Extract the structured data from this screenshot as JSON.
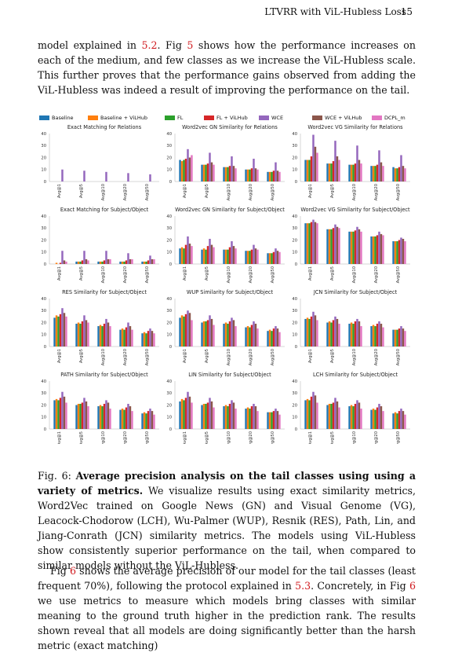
{
  "header": {
    "running_head": "LTVRR with ViL-Hubless Loss",
    "page_number": "15"
  },
  "intro_para": {
    "t1": "model explained in ",
    "r1": "5.2",
    "t2": ". Fig ",
    "r2": "5",
    "t3": " shows how the performance increases on each of the medium, and few classes as we increase the ViL-Hubless scale. This further proves that the performance gains observed from adding the ViL-Hubless was indeed a result of improving the performance on the tail."
  },
  "colors": {
    "Baseline": "#1f77b4",
    "Baseline + ViLHub": "#ff7f0e",
    "FL": "#2ca02c",
    "FL + ViLHub": "#d62728",
    "WCE": "#9467bd",
    "WCE + ViLHub": "#8c564b",
    "DCPL_m": "#e377c2"
  },
  "chart_data": [
    {
      "type": "bar",
      "title": "Exact Matching for Relations",
      "categories": [
        "Avg@1",
        "Avg@5",
        "Avg@10",
        "Avg@20",
        "Avg@50"
      ],
      "ylim": [
        0,
        40
      ],
      "yticks": [
        0,
        10,
        20,
        30,
        40
      ],
      "series": [
        {
          "name": "Baseline",
          "values": [
            0,
            0,
            0,
            0,
            0
          ]
        },
        {
          "name": "Baseline + ViLHub",
          "values": [
            0,
            0,
            0,
            0,
            0
          ]
        },
        {
          "name": "FL",
          "values": [
            0,
            0,
            0,
            0,
            0
          ]
        },
        {
          "name": "FL + ViLHub",
          "values": [
            0,
            0,
            0,
            0,
            0
          ]
        },
        {
          "name": "WCE",
          "values": [
            10,
            9,
            8,
            7,
            6
          ]
        },
        {
          "name": "WCE + ViLHub",
          "values": [
            0,
            0,
            0,
            0,
            0
          ]
        },
        {
          "name": "DCPL_m",
          "values": [
            0,
            0,
            0,
            0,
            0
          ]
        }
      ]
    },
    {
      "type": "bar",
      "title": "Word2vec GN Similarity for Relations",
      "categories": [
        "Avg@1",
        "Avg@5",
        "Avg@10",
        "Avg@20",
        "Avg@50"
      ],
      "ylim": [
        0,
        40
      ],
      "yticks": [
        0,
        10,
        20,
        30,
        40
      ],
      "series": [
        {
          "name": "Baseline",
          "values": [
            18,
            14,
            12,
            10,
            8
          ]
        },
        {
          "name": "Baseline + ViLHub",
          "values": [
            17,
            14,
            12,
            10,
            8
          ]
        },
        {
          "name": "FL",
          "values": [
            18,
            14,
            12,
            10,
            8
          ]
        },
        {
          "name": "FL + ViLHub",
          "values": [
            19,
            15,
            13,
            11,
            9
          ]
        },
        {
          "name": "WCE",
          "values": [
            27,
            24,
            21,
            19,
            16
          ]
        },
        {
          "name": "WCE + ViLHub",
          "values": [
            20,
            16,
            13,
            11,
            9
          ]
        },
        {
          "name": "DCPL_m",
          "values": [
            22,
            14,
            11,
            10,
            8
          ]
        }
      ]
    },
    {
      "type": "bar",
      "title": "Word2vec VG Similarity for Relations",
      "categories": [
        "Avg@1",
        "Avg@5",
        "Avg@10",
        "Avg@20",
        "Avg@50"
      ],
      "ylim": [
        0,
        40
      ],
      "yticks": [
        0,
        10,
        20,
        30,
        40
      ],
      "series": [
        {
          "name": "Baseline",
          "values": [
            18,
            15,
            14,
            13,
            12
          ]
        },
        {
          "name": "Baseline + ViLHub",
          "values": [
            18,
            15,
            14,
            13,
            11
          ]
        },
        {
          "name": "FL",
          "values": [
            18,
            15,
            14,
            13,
            11
          ]
        },
        {
          "name": "FL + ViLHub",
          "values": [
            21,
            17,
            15,
            14,
            12
          ]
        },
        {
          "name": "WCE",
          "values": [
            39,
            34,
            30,
            26,
            22
          ]
        },
        {
          "name": "WCE + ViLHub",
          "values": [
            29,
            21,
            18,
            16,
            13
          ]
        },
        {
          "name": "DCPL_m",
          "values": [
            24,
            18,
            15,
            13,
            11
          ]
        }
      ]
    },
    {
      "type": "bar",
      "title": "Exact Matching for Subject/Object",
      "categories": [
        "Avg@1",
        "Avg@5",
        "Avg@10",
        "Avg@20",
        "Avg@50"
      ],
      "ylim": [
        0,
        40
      ],
      "yticks": [
        0,
        10,
        20,
        30,
        40
      ],
      "series": [
        {
          "name": "Baseline",
          "values": [
            0,
            2,
            2,
            2,
            2
          ]
        },
        {
          "name": "Baseline + ViLHub",
          "values": [
            1,
            2,
            2,
            2,
            2
          ]
        },
        {
          "name": "FL",
          "values": [
            0,
            2,
            2,
            2,
            2
          ]
        },
        {
          "name": "FL + ViLHub",
          "values": [
            1,
            3,
            3,
            3,
            3
          ]
        },
        {
          "name": "WCE",
          "values": [
            11,
            11,
            11,
            9,
            7
          ]
        },
        {
          "name": "WCE + ViLHub",
          "values": [
            3,
            4,
            4,
            4,
            4
          ]
        },
        {
          "name": "DCPL_m",
          "values": [
            2,
            3,
            4,
            4,
            4
          ]
        }
      ]
    },
    {
      "type": "bar",
      "title": "Word2vec GN Similarity for Subject/Object",
      "categories": [
        "Avg@1",
        "Avg@5",
        "Avg@10",
        "Avg@20",
        "Avg@50"
      ],
      "ylim": [
        0,
        40
      ],
      "yticks": [
        0,
        10,
        20,
        30,
        40
      ],
      "series": [
        {
          "name": "Baseline",
          "values": [
            13,
            12,
            12,
            11,
            9
          ]
        },
        {
          "name": "Baseline + ViLHub",
          "values": [
            14,
            13,
            12,
            11,
            9
          ]
        },
        {
          "name": "FL",
          "values": [
            13,
            12,
            12,
            11,
            9
          ]
        },
        {
          "name": "FL + ViLHub",
          "values": [
            16,
            15,
            14,
            12,
            10
          ]
        },
        {
          "name": "WCE",
          "values": [
            23,
            21,
            19,
            16,
            13
          ]
        },
        {
          "name": "WCE + ViLHub",
          "values": [
            17,
            16,
            15,
            13,
            11
          ]
        },
        {
          "name": "DCPL_m",
          "values": [
            15,
            14,
            13,
            12,
            10
          ]
        }
      ]
    },
    {
      "type": "bar",
      "title": "Word2vec VG Similarity for Subject/Object",
      "categories": [
        "Avg@1",
        "Avg@5",
        "Avg@10",
        "Avg@20",
        "Avg@50"
      ],
      "ylim": [
        0,
        40
      ],
      "yticks": [
        0,
        10,
        20,
        30,
        40
      ],
      "series": [
        {
          "name": "Baseline",
          "values": [
            34,
            29,
            27,
            23,
            19
          ]
        },
        {
          "name": "Baseline + ViLHub",
          "values": [
            34,
            29,
            27,
            23,
            19
          ]
        },
        {
          "name": "FL",
          "values": [
            34,
            29,
            27,
            23,
            19
          ]
        },
        {
          "name": "FL + ViLHub",
          "values": [
            35,
            30,
            28,
            24,
            20
          ]
        },
        {
          "name": "WCE",
          "values": [
            37,
            33,
            31,
            27,
            22
          ]
        },
        {
          "name": "WCE + ViLHub",
          "values": [
            35,
            31,
            29,
            25,
            21
          ]
        },
        {
          "name": "DCPL_m",
          "values": [
            34,
            30,
            27,
            24,
            19
          ]
        }
      ]
    },
    {
      "type": "bar",
      "title": "RES Similarity for Subject/Object",
      "categories": [
        "Avg@1",
        "Avg@5",
        "Avg@10",
        "Avg@20",
        "Avg@50"
      ],
      "ylim": [
        0,
        40
      ],
      "yticks": [
        0,
        10,
        20,
        30,
        40
      ],
      "series": [
        {
          "name": "Baseline",
          "values": [
            24,
            19,
            17,
            14,
            11
          ]
        },
        {
          "name": "Baseline + ViLHub",
          "values": [
            26,
            20,
            18,
            15,
            12
          ]
        },
        {
          "name": "FL",
          "values": [
            25,
            19,
            17,
            14,
            11
          ]
        },
        {
          "name": "FL + ViLHub",
          "values": [
            27,
            21,
            19,
            16,
            13
          ]
        },
        {
          "name": "WCE",
          "values": [
            32,
            26,
            23,
            20,
            15
          ]
        },
        {
          "name": "WCE + ViLHub",
          "values": [
            28,
            22,
            20,
            17,
            13
          ]
        },
        {
          "name": "DCPL_m",
          "values": [
            25,
            20,
            17,
            14,
            11
          ]
        }
      ]
    },
    {
      "type": "bar",
      "title": "WUP Similarity for Subject/Object",
      "categories": [
        "Avg@1",
        "Avg@5",
        "Avg@10",
        "Avg@20",
        "Avg@50"
      ],
      "ylim": [
        0,
        40
      ],
      "yticks": [
        0,
        10,
        20,
        30,
        40
      ],
      "series": [
        {
          "name": "Baseline",
          "values": [
            24,
            20,
            19,
            16,
            13
          ]
        },
        {
          "name": "Baseline + ViLHub",
          "values": [
            26,
            21,
            20,
            17,
            14
          ]
        },
        {
          "name": "FL",
          "values": [
            25,
            21,
            19,
            16,
            13
          ]
        },
        {
          "name": "FL + ViLHub",
          "values": [
            27,
            22,
            21,
            18,
            15
          ]
        },
        {
          "name": "WCE",
          "values": [
            30,
            26,
            24,
            21,
            17
          ]
        },
        {
          "name": "WCE + ViLHub",
          "values": [
            28,
            23,
            22,
            19,
            15
          ]
        },
        {
          "name": "DCPL_m",
          "values": [
            22,
            18,
            17,
            15,
            12
          ]
        }
      ]
    },
    {
      "type": "bar",
      "title": "JCN Similarity for Subject/Object",
      "categories": [
        "Avg@1",
        "Avg@5",
        "Avg@10",
        "Avg@20",
        "Avg@50"
      ],
      "ylim": [
        0,
        40
      ],
      "yticks": [
        0,
        10,
        20,
        30,
        40
      ],
      "series": [
        {
          "name": "Baseline",
          "values": [
            23,
            20,
            19,
            17,
            14
          ]
        },
        {
          "name": "Baseline + ViLHub",
          "values": [
            24,
            21,
            20,
            18,
            14
          ]
        },
        {
          "name": "FL",
          "values": [
            23,
            20,
            19,
            17,
            14
          ]
        },
        {
          "name": "FL + ViLHub",
          "values": [
            25,
            22,
            21,
            19,
            15
          ]
        },
        {
          "name": "WCE",
          "values": [
            29,
            25,
            23,
            21,
            17
          ]
        },
        {
          "name": "WCE + ViLHub",
          "values": [
            26,
            23,
            21,
            19,
            15
          ]
        },
        {
          "name": "DCPL_m",
          "values": [
            22,
            19,
            17,
            16,
            13
          ]
        }
      ]
    },
    {
      "type": "bar",
      "title": "PATH Similarity for Subject/Object",
      "categories": [
        "Avg@1",
        "Avg@5",
        "Avg@10",
        "Avg@20",
        "Avg@50"
      ],
      "ylim": [
        0,
        40
      ],
      "yticks": [
        0,
        10,
        20,
        30,
        40
      ],
      "series": [
        {
          "name": "Baseline",
          "values": [
            24,
            20,
            19,
            16,
            13
          ]
        },
        {
          "name": "Baseline + ViLHub",
          "values": [
            25,
            21,
            20,
            17,
            14
          ]
        },
        {
          "name": "FL",
          "values": [
            24,
            21,
            19,
            16,
            13
          ]
        },
        {
          "name": "FL + ViLHub",
          "values": [
            26,
            22,
            21,
            18,
            15
          ]
        },
        {
          "name": "WCE",
          "values": [
            31,
            26,
            24,
            21,
            17
          ]
        },
        {
          "name": "WCE + ViLHub",
          "values": [
            27,
            23,
            22,
            19,
            15
          ]
        },
        {
          "name": "DCPL_m",
          "values": [
            22,
            19,
            17,
            15,
            12
          ]
        }
      ]
    },
    {
      "type": "bar",
      "title": "LIN Similarity for Subject/Object",
      "categories": [
        "Avg@1",
        "Avg@5",
        "Avg@10",
        "Avg@20",
        "Avg@50"
      ],
      "ylim": [
        0,
        40
      ],
      "yticks": [
        0,
        10,
        20,
        30,
        40
      ],
      "series": [
        {
          "name": "Baseline",
          "values": [
            23,
            20,
            19,
            17,
            14
          ]
        },
        {
          "name": "Baseline + ViLHub",
          "values": [
            25,
            21,
            20,
            18,
            14
          ]
        },
        {
          "name": "FL",
          "values": [
            24,
            21,
            19,
            17,
            14
          ]
        },
        {
          "name": "FL + ViLHub",
          "values": [
            26,
            22,
            21,
            19,
            15
          ]
        },
        {
          "name": "WCE",
          "values": [
            31,
            26,
            24,
            21,
            17
          ]
        },
        {
          "name": "WCE + ViLHub",
          "values": [
            27,
            23,
            22,
            19,
            15
          ]
        },
        {
          "name": "DCPL_m",
          "values": [
            22,
            18,
            17,
            15,
            12
          ]
        }
      ]
    },
    {
      "type": "bar",
      "title": "LCH Similarity for Subject/Object",
      "categories": [
        "Avg@1",
        "Avg@5",
        "Avg@10",
        "Avg@20",
        "Avg@50"
      ],
      "ylim": [
        0,
        40
      ],
      "yticks": [
        0,
        10,
        20,
        30,
        40
      ],
      "series": [
        {
          "name": "Baseline",
          "values": [
            24,
            20,
            19,
            16,
            13
          ]
        },
        {
          "name": "Baseline + ViLHub",
          "values": [
            25,
            21,
            20,
            17,
            14
          ]
        },
        {
          "name": "FL",
          "values": [
            24,
            21,
            19,
            16,
            13
          ]
        },
        {
          "name": "FL + ViLHub",
          "values": [
            27,
            22,
            21,
            18,
            15
          ]
        },
        {
          "name": "WCE",
          "values": [
            31,
            26,
            24,
            21,
            17
          ]
        },
        {
          "name": "WCE + ViLHub",
          "values": [
            28,
            23,
            22,
            19,
            15
          ]
        },
        {
          "name": "DCPL_m",
          "values": [
            22,
            18,
            17,
            15,
            12
          ]
        }
      ]
    }
  ],
  "caption": {
    "label": "Fig. 6: ",
    "bold": "Average precision analysis on the tail classes using using a variety of metrics.",
    "text": " We visualize results using exact similarity metrics, Word2Vec trained on Google News (GN) and Visual Genome (VG), Leacock-Chodorow (LCH), Wu-Palmer (WUP), Resnik (RES), Path, Lin, and Jiang-Conrath (JCN) similarity metrics. The models using ViL-Hubless show consistently superior performance on the tail, when compared to similar models without the ViL-Hubless."
  },
  "body_para": {
    "t1": "Fig ",
    "r1": "6",
    "t2": " shows the average precision of our model for the tail classes (least frequent 70%), following the protocol explained in ",
    "r2": "5.3",
    "t3": ". Concretely, in Fig ",
    "r3": "6",
    "t4": " we use metrics to measure which models bring classes with similar meaning to the ground truth higher in the prediction rank. The results shown reveal that all models are doing significantly better than the harsh metric (exact matching)"
  }
}
